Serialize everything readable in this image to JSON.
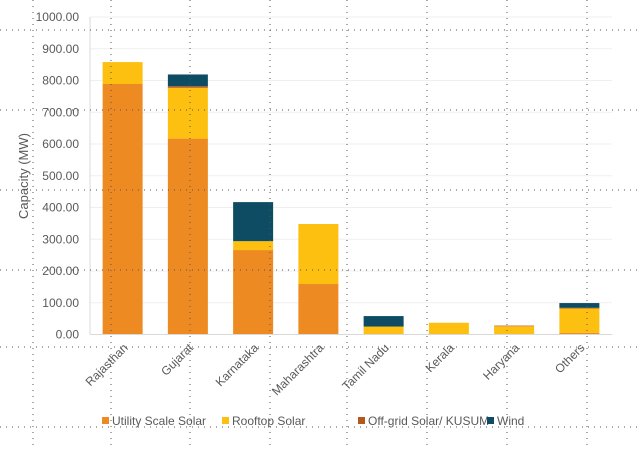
{
  "chart_data": {
    "type": "bar",
    "stacked": true,
    "title": "",
    "xlabel": "",
    "ylabel": "Capacity (MW)",
    "ylim": [
      0,
      1000
    ],
    "yticks": [
      "0.00",
      "100.00",
      "200.00",
      "300.00",
      "400.00",
      "500.00",
      "600.00",
      "700.00",
      "800.00",
      "900.00",
      "1000.00"
    ],
    "grid": true,
    "legend_position": "bottom",
    "categories": [
      "Rajasthan",
      "Gujarat",
      "Karnataka",
      "Maharashtra",
      "Tamil Nadu",
      "Kerala",
      "Haryana",
      "Others"
    ],
    "series": [
      {
        "name": "Utility Scale Solar",
        "color": "#ED8B22",
        "values": [
          789,
          617,
          266,
          159,
          0,
          0,
          0,
          5
        ]
      },
      {
        "name": "Rooftop Solar",
        "color": "#FDC010",
        "values": [
          69,
          160,
          28,
          189,
          25,
          37,
          26,
          77
        ]
      },
      {
        "name": "Off-grid Solar/ KUSUM",
        "color": "#B5581A",
        "values": [
          0,
          5,
          0,
          0,
          0,
          0,
          2,
          2
        ]
      },
      {
        "name": "Wind",
        "color": "#0E4C63",
        "values": [
          0,
          37,
          123,
          0,
          33,
          0,
          0,
          15
        ]
      }
    ]
  }
}
